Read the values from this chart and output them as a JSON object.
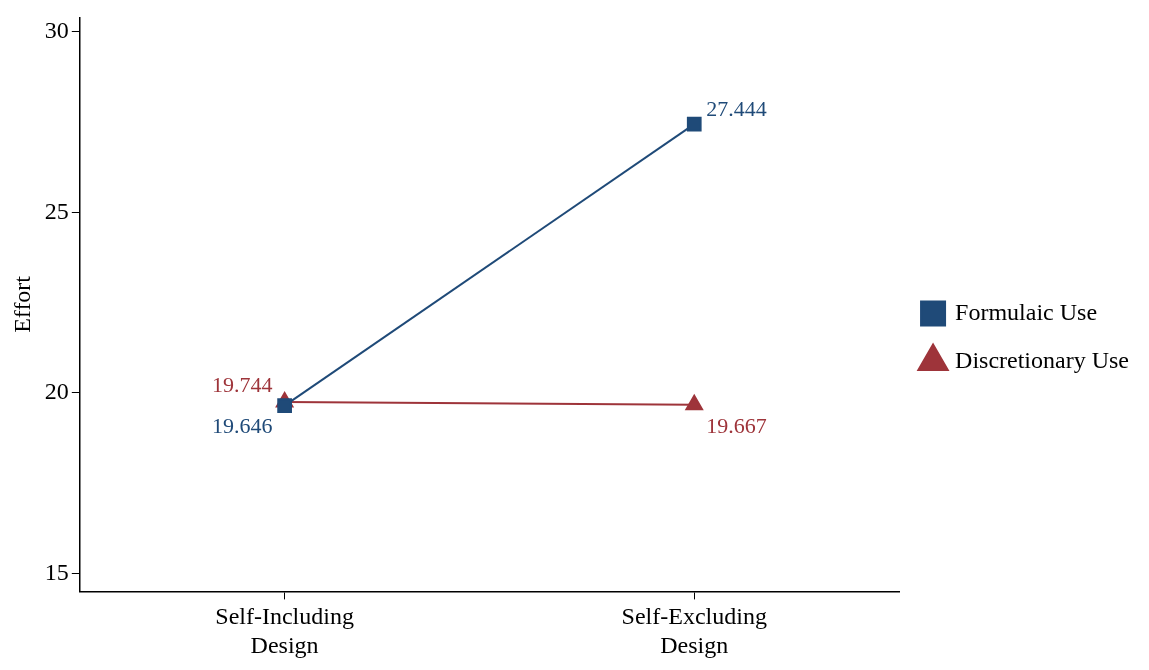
{
  "chart_data": {
    "type": "line",
    "ylabel": "Effort",
    "categories": [
      "Self-Including Design",
      "Self-Excluding Design"
    ],
    "series": [
      {
        "name": "Formulaic Use",
        "color": "#1f4a78",
        "values": [
          19.646,
          27.444
        ],
        "marker": "square"
      },
      {
        "name": "Discretionary Use",
        "color": "#9e343a",
        "values": [
          19.744,
          19.667
        ],
        "marker": "triangle"
      }
    ],
    "ylim": [
      14.5,
      30.4
    ],
    "yticks": [
      15,
      20,
      25,
      30
    ],
    "grid": false,
    "legend": "right",
    "data_labels": true
  }
}
